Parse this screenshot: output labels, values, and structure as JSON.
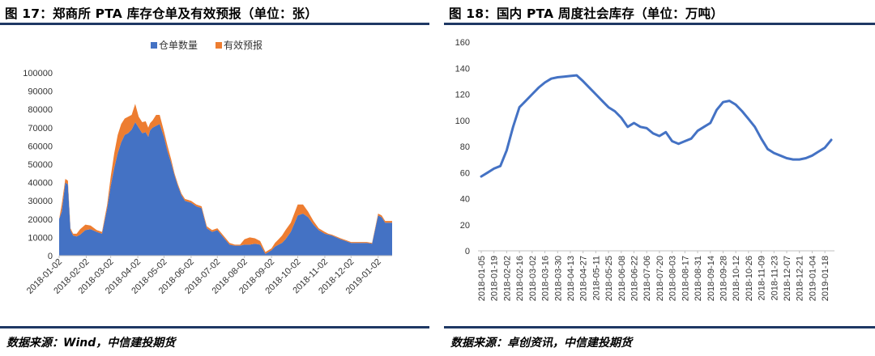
{
  "left": {
    "title": "图 17：郑商所 PTA 库存仓单及有效预报（单位：张）",
    "source": "数据来源：Wind，中信建投期货"
  },
  "right": {
    "title": "图 18：国内 PTA 周度社会库存（单位：万吨）",
    "source": "数据来源：卓创资讯，中信建投期货"
  },
  "chart_data": [
    {
      "type": "area",
      "title": "",
      "stacked": true,
      "legend_position": "top",
      "grid": false,
      "ylim": [
        0,
        100000
      ],
      "yticks": [
        "0",
        "10000",
        "20000",
        "30000",
        "40000",
        "50000",
        "60000",
        "70000",
        "80000",
        "90000",
        "100000"
      ],
      "xtick_labels": [
        "2018-01-02",
        "2018-02-02",
        "2018-03-02",
        "2018-04-02",
        "2018-05-02",
        "2018-06-02",
        "2018-07-02",
        "2018-08-02",
        "2018-09-02",
        "2018-10-02",
        "2018-11-02",
        "2018-12-02",
        "2019-01-02"
      ],
      "x": [
        "2018-01-02",
        "2018-01-05",
        "2018-01-09",
        "2018-01-12",
        "2018-01-15",
        "2018-01-18",
        "2018-01-22",
        "2018-01-26",
        "2018-02-01",
        "2018-02-07",
        "2018-02-14",
        "2018-02-20",
        "2018-02-26",
        "2018-03-02",
        "2018-03-06",
        "2018-03-10",
        "2018-03-14",
        "2018-03-18",
        "2018-03-22",
        "2018-03-26",
        "2018-03-30",
        "2018-04-03",
        "2018-04-07",
        "2018-04-11",
        "2018-04-14",
        "2018-04-16",
        "2018-04-19",
        "2018-04-23",
        "2018-04-27",
        "2018-05-02",
        "2018-05-06",
        "2018-05-10",
        "2018-05-14",
        "2018-05-18",
        "2018-05-22",
        "2018-05-26",
        "2018-06-02",
        "2018-06-08",
        "2018-06-14",
        "2018-06-20",
        "2018-06-26",
        "2018-07-02",
        "2018-07-09",
        "2018-07-16",
        "2018-07-22",
        "2018-07-28",
        "2018-08-02",
        "2018-08-08",
        "2018-08-14",
        "2018-08-20",
        "2018-08-26",
        "2018-09-02",
        "2018-09-06",
        "2018-09-10",
        "2018-09-14",
        "2018-09-18",
        "2018-09-24",
        "2018-10-02",
        "2018-10-08",
        "2018-10-14",
        "2018-10-20",
        "2018-10-26",
        "2018-11-02",
        "2018-11-06",
        "2018-11-10",
        "2018-11-15",
        "2018-11-20",
        "2018-11-26",
        "2018-12-02",
        "2018-12-08",
        "2018-12-14",
        "2018-12-20",
        "2018-12-26",
        "2019-01-02",
        "2019-01-06",
        "2019-01-10",
        "2019-01-14",
        "2019-01-18"
      ],
      "series": [
        {
          "name": "仓单数量",
          "color": "#4472c4",
          "values": [
            20000,
            24000,
            40000,
            39000,
            14000,
            11000,
            10500,
            11500,
            14000,
            14500,
            13000,
            12000,
            26000,
            38000,
            48000,
            56000,
            62000,
            66000,
            67000,
            69000,
            73000,
            70000,
            67000,
            67500,
            65000,
            68500,
            70000,
            71000,
            72000,
            65000,
            57000,
            51000,
            44000,
            38000,
            33000,
            30000,
            29000,
            27000,
            26000,
            15000,
            13000,
            14000,
            10000,
            6000,
            5500,
            5500,
            6000,
            6000,
            6500,
            6000,
            1000,
            3000,
            5000,
            6000,
            7000,
            9000,
            13000,
            22000,
            23000,
            21000,
            17000,
            14000,
            12000,
            11500,
            11000,
            10000,
            9000,
            8000,
            7000,
            7000,
            7000,
            7000,
            6500,
            22000,
            21000,
            18000,
            18000,
            18000
          ]
        },
        {
          "name": "有效预报",
          "color": "#ed7d31",
          "values": [
            0,
            4000,
            2000,
            2000,
            1000,
            1000,
            1500,
            3000,
            3000,
            2000,
            1000,
            1000,
            2000,
            5000,
            8000,
            10000,
            10000,
            9000,
            9000,
            8000,
            10000,
            6000,
            6000,
            6000,
            5000,
            4000,
            4000,
            6000,
            5000,
            3000,
            3000,
            2000,
            1000,
            1000,
            1000,
            1000,
            1000,
            1000,
            1000,
            1000,
            1000,
            1000,
            1000,
            1000,
            500,
            500,
            3000,
            4000,
            3000,
            2000,
            1000,
            1000,
            2000,
            3000,
            4000,
            5000,
            5000,
            6000,
            5000,
            3000,
            2000,
            1000,
            1000,
            500,
            500,
            500,
            500,
            500,
            500,
            500,
            500,
            500,
            500,
            1000,
            1000,
            1000,
            1000,
            1000
          ]
        }
      ]
    },
    {
      "type": "line",
      "title": "",
      "grid": false,
      "ylim": [
        0,
        160
      ],
      "yticks": [
        "0",
        "20",
        "40",
        "60",
        "80",
        "100",
        "120",
        "140",
        "160"
      ],
      "x": [
        "2018-01-05",
        "2018-01-12",
        "2018-01-19",
        "2018-01-26",
        "2018-02-02",
        "2018-02-09",
        "2018-02-16",
        "2018-02-23",
        "2018-03-02",
        "2018-03-09",
        "2018-03-16",
        "2018-03-23",
        "2018-03-30",
        "2018-04-06",
        "2018-04-13",
        "2018-04-20",
        "2018-04-27",
        "2018-05-04",
        "2018-05-11",
        "2018-05-18",
        "2018-05-25",
        "2018-06-01",
        "2018-06-08",
        "2018-06-15",
        "2018-06-22",
        "2018-06-29",
        "2018-07-06",
        "2018-07-13",
        "2018-07-20",
        "2018-07-27",
        "2018-08-03",
        "2018-08-10",
        "2018-08-17",
        "2018-08-24",
        "2018-08-31",
        "2018-09-07",
        "2018-09-14",
        "2018-09-21",
        "2018-09-28",
        "2018-10-05",
        "2018-10-12",
        "2018-10-19",
        "2018-10-26",
        "2018-11-02",
        "2018-11-09",
        "2018-11-16",
        "2018-11-23",
        "2018-11-30",
        "2018-12-07",
        "2018-12-14",
        "2018-12-21",
        "2018-12-28",
        "2019-01-04",
        "2019-01-11",
        "2019-01-18",
        "2019-01-25"
      ],
      "xtick_labels": [
        "2018-01-05",
        "2018-01-19",
        "2018-02-02",
        "2018-02-16",
        "2018-03-02",
        "2018-03-16",
        "2018-03-30",
        "2018-04-13",
        "2018-04-27",
        "2018-05-11",
        "2018-05-25",
        "2018-06-08",
        "2018-06-22",
        "2018-07-06",
        "2018-07-20",
        "2018-08-03",
        "2018-08-17",
        "2018-08-31",
        "2018-09-14",
        "2018-09-28",
        "2018-10-12",
        "2018-10-26",
        "2018-11-09",
        "2018-11-23",
        "2018-12-07",
        "2018-12-21",
        "2019-01-04",
        "2019-01-18"
      ],
      "series": [
        {
          "color": "#4472c4",
          "values": [
            57,
            60,
            63,
            65,
            77,
            95,
            110,
            115,
            120,
            125,
            129,
            132,
            133,
            133.5,
            134,
            134.5,
            130,
            125,
            120,
            115,
            110,
            107,
            102,
            95,
            98,
            95,
            94,
            90,
            88,
            91,
            84,
            82,
            84,
            86,
            92,
            95,
            98,
            108,
            114,
            115,
            112,
            107,
            101,
            95,
            86,
            78,
            75,
            73,
            71,
            70,
            70,
            71,
            73,
            76,
            79,
            85
          ]
        }
      ]
    }
  ]
}
